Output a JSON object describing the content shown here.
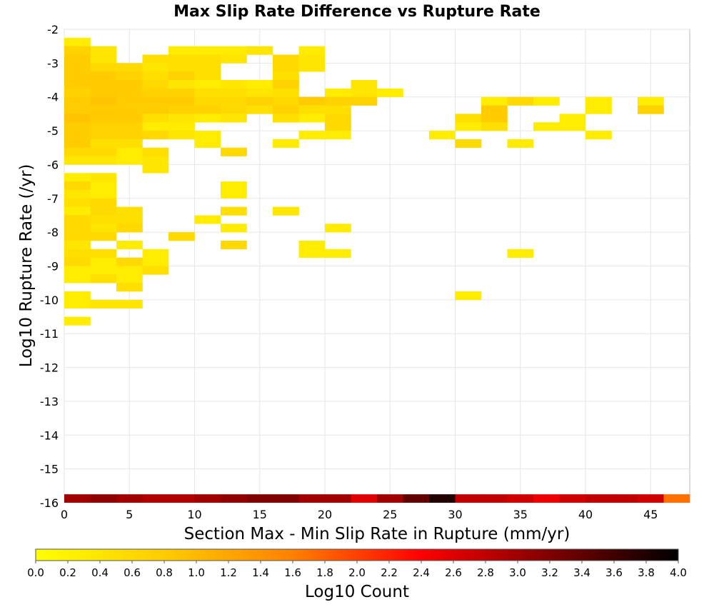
{
  "chart_data": {
    "type": "heatmap",
    "title": "Max Slip Rate Difference vs Rupture Rate",
    "xlabel": "Section Max - Min Slip Rate in Rupture (mm/yr)",
    "ylabel": "Log10 Rupture Rate (/yr)",
    "xlim": [
      0,
      48
    ],
    "ylim": [
      -16,
      -2
    ],
    "x_bin_width": 2,
    "y_bin_height": 0.25,
    "x_ticks": [
      0,
      5,
      10,
      15,
      20,
      25,
      30,
      35,
      40,
      45
    ],
    "y_ticks": [
      -2,
      -3,
      -4,
      -5,
      -6,
      -7,
      -8,
      -9,
      -10,
      -11,
      -12,
      -13,
      -14,
      -15,
      -16
    ],
    "grid": true,
    "colorbar": {
      "label": "Log10 Count",
      "range": [
        0.0,
        4.0
      ],
      "ticks": [
        "0.0",
        "0.2",
        "0.4",
        "0.6",
        "0.8",
        "1.0",
        "1.2",
        "1.4",
        "1.6",
        "1.8",
        "2.0",
        "2.2",
        "2.4",
        "2.6",
        "2.8",
        "3.0",
        "3.2",
        "3.4",
        "3.6",
        "3.8",
        "4.0"
      ],
      "colors": [
        "#ffff00",
        "#ffcc00",
        "#ff8000",
        "#ff0000",
        "#800000",
        "#000000"
      ]
    },
    "bottom_row": {
      "y": -16,
      "values": [
        3.0,
        3.1,
        3.0,
        2.9,
        2.9,
        3.0,
        3.1,
        3.2,
        3.2,
        3.0,
        3.0,
        2.6,
        3.0,
        3.4,
        3.8,
        2.8,
        2.8,
        2.7,
        2.5,
        2.7,
        2.8,
        2.8,
        2.7,
        1.7
      ]
    },
    "cells": [
      [
        0,
        -2.25,
        0.3
      ],
      [
        2,
        -2.5,
        0.4
      ],
      [
        0,
        -2.5,
        0.7
      ],
      [
        8,
        -2.5,
        0.3
      ],
      [
        10,
        -2.5,
        0.3
      ],
      [
        12,
        -2.5,
        0.3
      ],
      [
        14,
        -2.5,
        0.4
      ],
      [
        18,
        -2.5,
        0.3
      ],
      [
        0,
        -2.75,
        0.8
      ],
      [
        2,
        -2.75,
        0.4
      ],
      [
        6,
        -2.75,
        0.5
      ],
      [
        8,
        -2.75,
        0.5
      ],
      [
        10,
        -2.75,
        0.5
      ],
      [
        12,
        -2.75,
        0.4
      ],
      [
        16,
        -2.75,
        0.6
      ],
      [
        18,
        -2.75,
        0.4
      ],
      [
        0,
        -3.0,
        0.8
      ],
      [
        2,
        -3.0,
        0.6
      ],
      [
        4,
        -3.0,
        0.6
      ],
      [
        6,
        -3.0,
        0.4
      ],
      [
        8,
        -3.0,
        0.5
      ],
      [
        10,
        -3.0,
        0.5
      ],
      [
        16,
        -3.0,
        0.6
      ],
      [
        18,
        -3.0,
        0.4
      ],
      [
        0,
        -3.25,
        0.8
      ],
      [
        2,
        -3.25,
        0.8
      ],
      [
        4,
        -3.25,
        0.7
      ],
      [
        6,
        -3.25,
        0.5
      ],
      [
        8,
        -3.25,
        0.7
      ],
      [
        10,
        -3.25,
        0.5
      ],
      [
        16,
        -3.25,
        0.5
      ],
      [
        0,
        -3.5,
        0.8
      ],
      [
        2,
        -3.5,
        0.8
      ],
      [
        4,
        -3.5,
        0.8
      ],
      [
        6,
        -3.5,
        0.6
      ],
      [
        8,
        -3.5,
        0.4
      ],
      [
        10,
        -3.5,
        0.3
      ],
      [
        12,
        -3.5,
        0.4
      ],
      [
        14,
        -3.5,
        0.3
      ],
      [
        16,
        -3.5,
        0.7
      ],
      [
        22,
        -3.5,
        0.4
      ],
      [
        0,
        -3.75,
        0.7
      ],
      [
        2,
        -3.75,
        0.8
      ],
      [
        4,
        -3.75,
        0.8
      ],
      [
        6,
        -3.75,
        0.7
      ],
      [
        8,
        -3.75,
        0.7
      ],
      [
        10,
        -3.75,
        0.5
      ],
      [
        12,
        -3.75,
        0.5
      ],
      [
        14,
        -3.75,
        0.4
      ],
      [
        16,
        -3.75,
        0.5
      ],
      [
        20,
        -3.75,
        0.3
      ],
      [
        22,
        -3.75,
        0.4
      ],
      [
        24,
        -3.75,
        0.3
      ],
      [
        0,
        -4.0,
        0.8
      ],
      [
        2,
        -4.0,
        0.9
      ],
      [
        4,
        -4.0,
        0.8
      ],
      [
        6,
        -4.0,
        0.8
      ],
      [
        8,
        -4.0,
        0.8
      ],
      [
        10,
        -4.0,
        0.6
      ],
      [
        12,
        -4.0,
        0.6
      ],
      [
        14,
        -4.0,
        0.7
      ],
      [
        16,
        -4.0,
        0.6
      ],
      [
        18,
        -4.0,
        0.8
      ],
      [
        20,
        -4.0,
        0.7
      ],
      [
        22,
        -4.0,
        0.7
      ],
      [
        32,
        -4.0,
        0.3
      ],
      [
        34,
        -4.0,
        0.6
      ],
      [
        36,
        -4.0,
        0.3
      ],
      [
        40,
        -4.0,
        0.3
      ],
      [
        44,
        -4.0,
        0.3
      ],
      [
        0,
        -4.25,
        0.8
      ],
      [
        2,
        -4.25,
        0.8
      ],
      [
        4,
        -4.25,
        0.8
      ],
      [
        6,
        -4.25,
        0.8
      ],
      [
        8,
        -4.25,
        0.7
      ],
      [
        10,
        -4.25,
        0.7
      ],
      [
        12,
        -4.25,
        0.6
      ],
      [
        14,
        -4.25,
        0.5
      ],
      [
        16,
        -4.25,
        0.7
      ],
      [
        18,
        -4.25,
        0.5
      ],
      [
        20,
        -4.25,
        0.5
      ],
      [
        32,
        -4.25,
        0.8
      ],
      [
        40,
        -4.25,
        0.3
      ],
      [
        44,
        -4.25,
        0.7
      ],
      [
        0,
        -4.5,
        0.9
      ],
      [
        2,
        -4.5,
        0.8
      ],
      [
        4,
        -4.5,
        0.8
      ],
      [
        6,
        -4.5,
        0.5
      ],
      [
        8,
        -4.5,
        0.4
      ],
      [
        10,
        -4.5,
        0.3
      ],
      [
        12,
        -4.5,
        0.4
      ],
      [
        16,
        -4.5,
        0.5
      ],
      [
        18,
        -4.5,
        0.3
      ],
      [
        20,
        -4.5,
        0.6
      ],
      [
        30,
        -4.5,
        0.5
      ],
      [
        32,
        -4.5,
        0.8
      ],
      [
        38,
        -4.5,
        0.3
      ],
      [
        0,
        -4.75,
        0.8
      ],
      [
        2,
        -4.75,
        0.7
      ],
      [
        4,
        -4.75,
        0.7
      ],
      [
        6,
        -4.75,
        0.3
      ],
      [
        8,
        -4.75,
        0.3
      ],
      [
        20,
        -4.75,
        0.6
      ],
      [
        30,
        -4.75,
        0.3
      ],
      [
        32,
        -4.75,
        0.5
      ],
      [
        36,
        -4.75,
        0.3
      ],
      [
        38,
        -4.75,
        0.3
      ],
      [
        0,
        -5.0,
        0.8
      ],
      [
        2,
        -5.0,
        0.7
      ],
      [
        4,
        -5.0,
        0.7
      ],
      [
        6,
        -5.0,
        0.6
      ],
      [
        8,
        -5.0,
        0.4
      ],
      [
        10,
        -5.0,
        0.3
      ],
      [
        18,
        -5.0,
        0.3
      ],
      [
        20,
        -5.0,
        0.3
      ],
      [
        28,
        -5.0,
        0.3
      ],
      [
        40,
        -5.0,
        0.3
      ],
      [
        0,
        -5.25,
        0.8
      ],
      [
        2,
        -5.25,
        0.5
      ],
      [
        4,
        -5.25,
        0.5
      ],
      [
        10,
        -5.25,
        0.3
      ],
      [
        16,
        -5.25,
        0.3
      ],
      [
        30,
        -5.25,
        0.6
      ],
      [
        34,
        -5.25,
        0.3
      ],
      [
        0,
        -5.5,
        0.6
      ],
      [
        2,
        -5.5,
        0.6
      ],
      [
        4,
        -5.5,
        0.3
      ],
      [
        6,
        -5.5,
        0.5
      ],
      [
        12,
        -5.5,
        0.6
      ],
      [
        0,
        -5.75,
        0.4
      ],
      [
        2,
        -5.75,
        0.4
      ],
      [
        4,
        -5.75,
        0.3
      ],
      [
        6,
        -5.75,
        0.4
      ],
      [
        6,
        -6.0,
        0.4
      ],
      [
        0,
        -6.25,
        0.3
      ],
      [
        2,
        -6.25,
        0.4
      ],
      [
        0,
        -6.5,
        0.6
      ],
      [
        2,
        -6.5,
        0.3
      ],
      [
        12,
        -6.5,
        0.3
      ],
      [
        0,
        -6.75,
        0.4
      ],
      [
        2,
        -6.75,
        0.3
      ],
      [
        12,
        -6.75,
        0.3
      ],
      [
        0,
        -7.0,
        0.5
      ],
      [
        2,
        -7.0,
        0.6
      ],
      [
        0,
        -7.25,
        0.3
      ],
      [
        2,
        -7.25,
        0.6
      ],
      [
        4,
        -7.25,
        0.5
      ],
      [
        12,
        -7.25,
        0.5
      ],
      [
        16,
        -7.25,
        0.4
      ],
      [
        0,
        -7.5,
        0.6
      ],
      [
        2,
        -7.5,
        0.5
      ],
      [
        4,
        -7.5,
        0.5
      ],
      [
        10,
        -7.5,
        0.3
      ],
      [
        0,
        -7.75,
        0.6
      ],
      [
        2,
        -7.75,
        0.4
      ],
      [
        4,
        -7.75,
        0.6
      ],
      [
        12,
        -7.75,
        0.3
      ],
      [
        20,
        -7.75,
        0.3
      ],
      [
        0,
        -8.0,
        0.6
      ],
      [
        2,
        -8.0,
        0.6
      ],
      [
        8,
        -8.0,
        0.6
      ],
      [
        0,
        -8.25,
        0.4
      ],
      [
        4,
        -8.25,
        0.3
      ],
      [
        12,
        -8.25,
        0.6
      ],
      [
        18,
        -8.25,
        0.3
      ],
      [
        0,
        -8.5,
        0.5
      ],
      [
        2,
        -8.5,
        0.5
      ],
      [
        6,
        -8.5,
        0.3
      ],
      [
        18,
        -8.5,
        0.3
      ],
      [
        20,
        -8.5,
        0.3
      ],
      [
        34,
        -8.5,
        0.3
      ],
      [
        0,
        -8.75,
        0.6
      ],
      [
        2,
        -8.75,
        0.3
      ],
      [
        4,
        -8.75,
        0.6
      ],
      [
        6,
        -8.75,
        0.3
      ],
      [
        0,
        -9.0,
        0.3
      ],
      [
        2,
        -9.0,
        0.3
      ],
      [
        4,
        -9.0,
        0.3
      ],
      [
        6,
        -9.0,
        0.5
      ],
      [
        0,
        -9.25,
        0.3
      ],
      [
        2,
        -9.25,
        0.5
      ],
      [
        4,
        -9.25,
        0.3
      ],
      [
        4,
        -9.5,
        0.5
      ],
      [
        0,
        -9.75,
        0.3
      ],
      [
        30,
        -9.75,
        0.3
      ],
      [
        0,
        -10.0,
        0.3
      ],
      [
        2,
        -10.0,
        0.4
      ],
      [
        4,
        -10.0,
        0.4
      ],
      [
        0,
        -10.5,
        0.3
      ]
    ]
  }
}
